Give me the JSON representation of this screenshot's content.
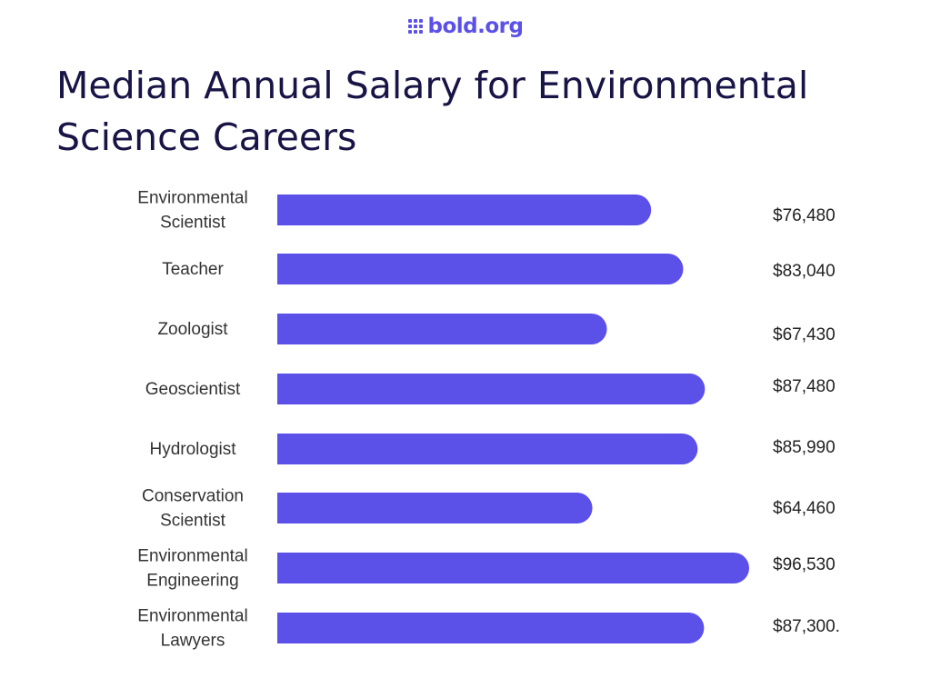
{
  "brand": {
    "logo_text": "bold.org",
    "color": "#5b50e8"
  },
  "chart_data": {
    "type": "bar",
    "orientation": "horizontal",
    "title": "Median Annual Salary for Environmental Science Careers",
    "categories": [
      [
        "Environmental",
        "Scientist"
      ],
      [
        "Teacher"
      ],
      [
        "Zoologist"
      ],
      [
        "Geoscientist"
      ],
      [
        "Hydrologist"
      ],
      [
        "Conservation",
        "Scientist"
      ],
      [
        "Environmental",
        "Engineering"
      ],
      [
        "Environmental",
        "Lawyers"
      ]
    ],
    "values": [
      76480,
      83040,
      67430,
      87480,
      85990,
      64460,
      96530,
      87300
    ],
    "value_labels": [
      "$76,480",
      "$83,040",
      "$67,430",
      "$87,480",
      "$85,990",
      "$64,460",
      "$96,530",
      "$87,300."
    ],
    "xlim": [
      0,
      96530
    ],
    "bar_color": "#5b50e8",
    "grid": false,
    "legend": "none"
  }
}
